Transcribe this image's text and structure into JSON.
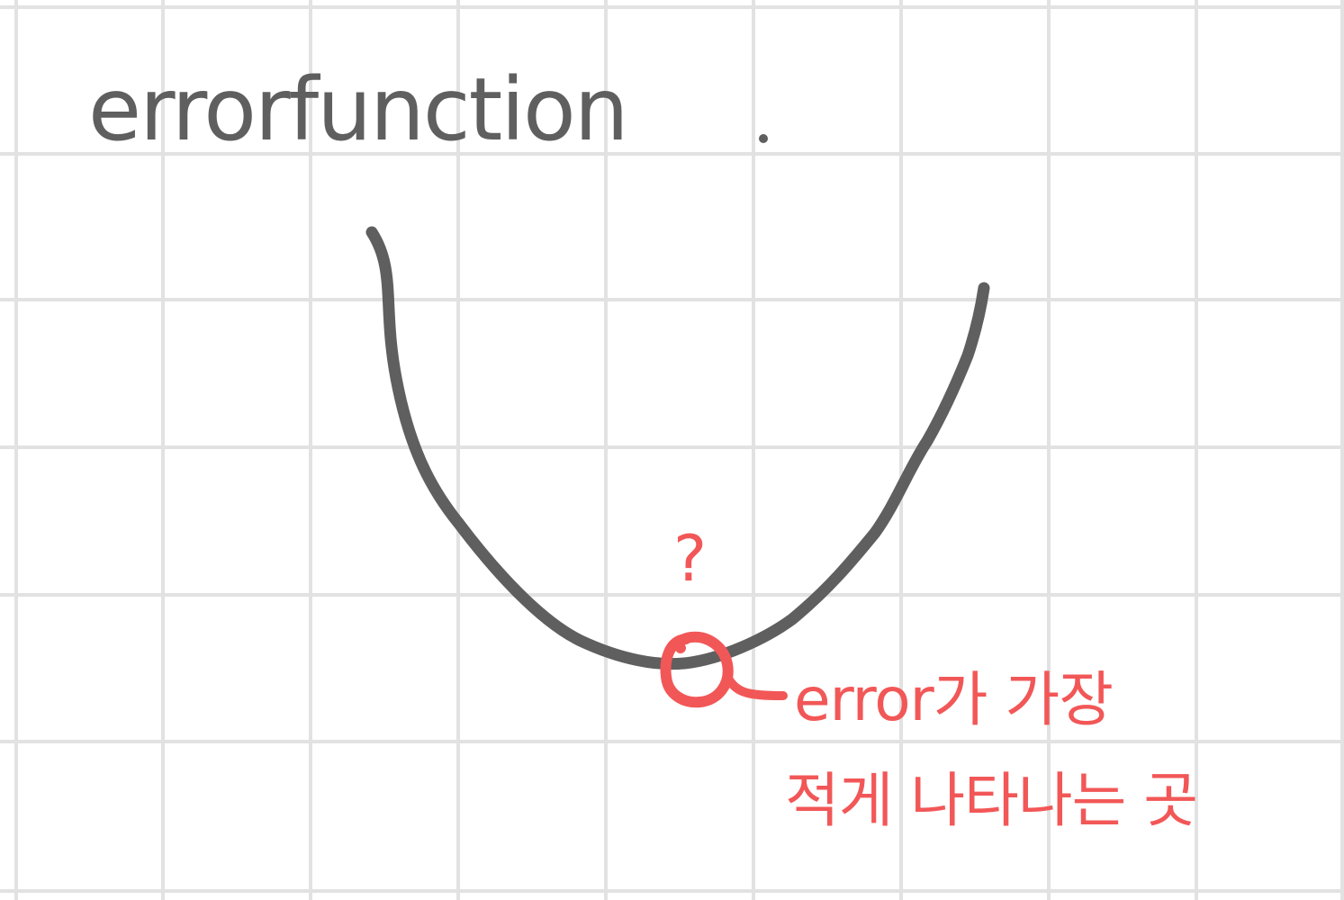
{
  "title": "errorfunction",
  "question_mark": "?",
  "annotation": {
    "line1": "error가 가장",
    "line2": "적게 나타나는 곳"
  },
  "colors": {
    "background": "#ffffff",
    "grid": "#e2e2e2",
    "ink_gray": "#5f5f5f",
    "ink_red": "#f25757"
  }
}
